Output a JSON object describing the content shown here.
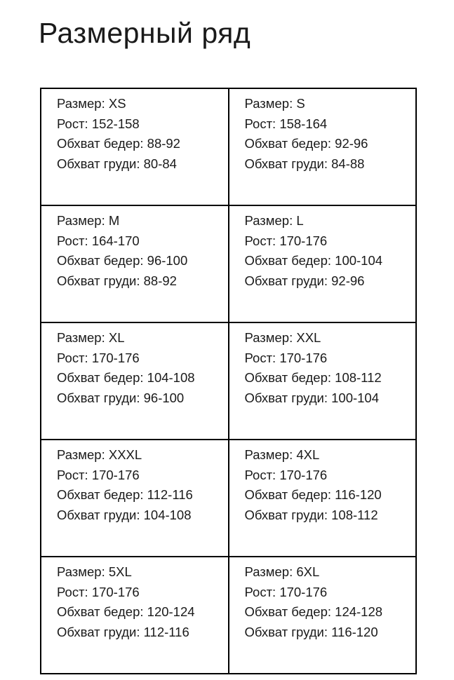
{
  "page": {
    "title": "Размерный ряд"
  },
  "size_chart": {
    "type": "table",
    "fields": [
      "Размер",
      "Рост",
      "Обхват бедер",
      "Обхват груди"
    ],
    "cells": [
      {
        "size": "XS",
        "lines": [
          "Размер: XS",
          "Рост: 152-158",
          "Обхват бедер: 88-92",
          "Обхват груди: 80-84"
        ]
      },
      {
        "size": "S",
        "lines": [
          "Размер: S",
          "Рост: 158-164",
          "Обхват бедер: 92-96",
          "Обхват груди: 84-88"
        ]
      },
      {
        "size": "M",
        "lines": [
          "Размер: M",
          "Рост: 164-170",
          "Обхват бедер: 96-100",
          "Обхват груди: 88-92"
        ]
      },
      {
        "size": "L",
        "lines": [
          "Размер: L",
          "Рост: 170-176",
          "Обхват бедер: 100-104",
          "Обхват груди: 92-96"
        ]
      },
      {
        "size": "XL",
        "lines": [
          "Размер: XL",
          "Рост: 170-176",
          "Обхват бедер: 104-108",
          "Обхват груди: 96-100"
        ]
      },
      {
        "size": "XXL",
        "lines": [
          "Размер: XXL",
          "Рост: 170-176",
          "Обхват бедер: 108-112",
          "Обхват груди: 100-104"
        ]
      },
      {
        "size": "XXXL",
        "lines": [
          "Размер: XXXL",
          "Рост: 170-176",
          "Обхват бедер: 112-116",
          "Обхват груди: 104-108"
        ]
      },
      {
        "size": "4XL",
        "lines": [
          "Размер: 4XL",
          "Рост: 170-176",
          "Обхват бедер: 116-120",
          "Обхват груди: 108-112"
        ]
      },
      {
        "size": "5XL",
        "lines": [
          "Размер: 5XL",
          "Рост: 170-176",
          "Обхват бедер: 120-124",
          "Обхват груди: 112-116"
        ]
      },
      {
        "size": "6XL",
        "lines": [
          "Размер: 6XL",
          "Рост: 170-176",
          "Обхват бедер: 124-128",
          "Обхват груди: 116-120"
        ]
      }
    ]
  },
  "colors": {
    "background": "#ffffff",
    "text": "#1a1a1a",
    "border": "#000000"
  }
}
